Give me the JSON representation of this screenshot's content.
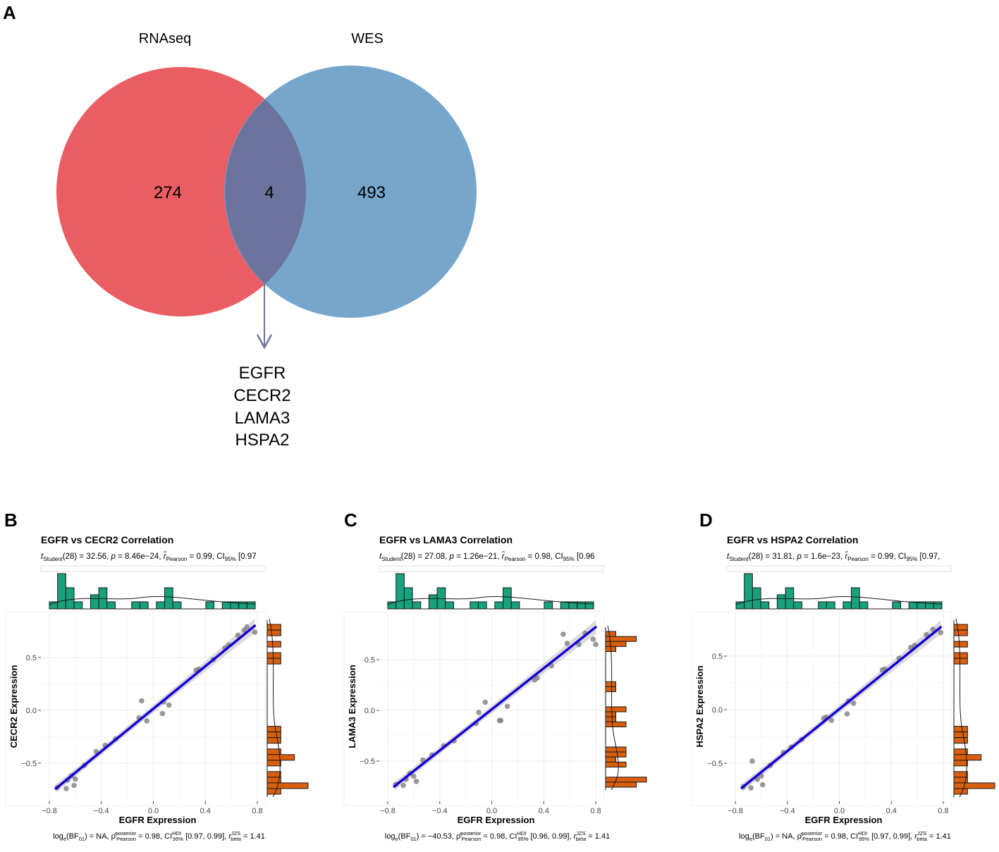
{
  "panels": {
    "A": {
      "label": "A",
      "set_labels": [
        "RNAseq",
        "WES"
      ],
      "counts": {
        "rnaseq_only": "274",
        "overlap": "4",
        "wes_only": "493"
      },
      "overlap_genes": [
        "EGFR",
        "CECR2",
        "LAMA3",
        "HSPA2"
      ],
      "colors": {
        "rnaseq": "#e95d63",
        "wes": "#76a6cc",
        "overlap": "#6c739c",
        "arrow": "#6e7398"
      }
    }
  },
  "chart_data": [
    {
      "panel": "B",
      "type": "scatter",
      "title": "EGFR vs CECR2 Correlation",
      "subtitle": {
        "t_label": "t",
        "t_sub": "Student",
        "t_value": "(28) = 32.56, ",
        "p_label": "p",
        "p_value": " = 8.46e−24, ",
        "r_label": "r̂",
        "r_sub": "Pearson",
        "r_value": " = 0.99, CI",
        "ci_sub": "95%",
        "ci_value": " [0.97"
      },
      "caption": {
        "log_part": "log",
        "log_sub": "e",
        "bf_part": "(BF",
        "bf_sub": "01",
        "bf_value": ") = NA, ",
        "rho": "ρ̂",
        "rho_sup": "posterior",
        "rho_sub": "Pearson",
        "rho_value": " = 0.98, CI",
        "ci_sup": "HDI",
        "ci_sub": "95%",
        "ci_value": " [0.97, 0.99], ",
        "r": "r",
        "r_sup": "JZS",
        "r_sub": "beta",
        "r_value": " = 1.41"
      },
      "xlabel": "EGFR Expression",
      "ylabel": "CECR2 Expression",
      "xlim": [
        -0.8,
        0.8
      ],
      "ylim": [
        -0.86,
        0.85
      ],
      "xticks": [
        -0.8,
        -0.4,
        0.0,
        0.4,
        0.8
      ],
      "xtick_labels": [
        "−0.8",
        "−0.4",
        "0.0",
        "0.4",
        "0.8"
      ],
      "yticks": [
        0.5,
        0.0,
        -0.5
      ],
      "ytick_labels": [
        "0.5",
        "0.0",
        "−0.5"
      ],
      "x": [
        -0.74,
        -0.67,
        -0.66,
        -0.63,
        -0.6,
        -0.61,
        -0.53,
        -0.44,
        -0.37,
        -0.29,
        -0.11,
        -0.09,
        -0.05,
        0.07,
        0.08,
        0.12,
        0.33,
        0.35,
        0.46,
        0.55,
        0.58,
        0.65,
        0.7,
        0.72,
        0.78
      ],
      "y": [
        -0.73,
        -0.74,
        -0.66,
        -0.62,
        -0.65,
        -0.71,
        -0.52,
        -0.39,
        -0.33,
        -0.27,
        -0.07,
        0.09,
        -0.1,
        -0.03,
        0.08,
        0.05,
        0.38,
        0.39,
        0.48,
        0.59,
        0.62,
        0.71,
        0.76,
        0.79,
        0.74
      ],
      "fit": {
        "x": [
          -0.75,
          0.78
        ],
        "y": [
          -0.74,
          0.8
        ]
      },
      "top_hist": [
        1,
        5,
        3,
        1,
        0,
        2,
        3,
        1,
        0,
        0,
        1,
        1,
        0,
        1,
        3,
        1,
        0,
        0,
        0,
        1,
        0,
        1,
        1,
        1,
        1
      ],
      "right_hist": [
        1,
        1,
        0,
        1,
        0,
        1,
        1,
        0,
        0,
        0,
        0,
        0,
        0,
        0,
        0,
        0,
        0,
        0,
        1,
        1,
        1,
        0,
        1,
        2,
        1,
        0,
        1,
        1,
        3,
        1
      ],
      "colors": {
        "top_hist": "#17a17c",
        "right_hist": "#d95f0e",
        "points": "#7f7f7f",
        "fit": "#1400d8",
        "band": "#bdbdbd"
      }
    },
    {
      "panel": "C",
      "type": "scatter",
      "title": "EGFR vs LAMA3 Correlation",
      "subtitle": {
        "t_label": "t",
        "t_sub": "Student",
        "t_value": "(28) = 27.08, ",
        "p_label": "p",
        "p_value": " = 1.26e−21, ",
        "r_label": "r̂",
        "r_sub": "Pearson",
        "r_value": " = 0.98, CI",
        "ci_sub": "95%",
        "ci_value": " [0.96"
      },
      "caption": {
        "log_part": "log",
        "log_sub": "e",
        "bf_part": "(BF",
        "bf_sub": "01",
        "bf_value": ") = −40.53, ",
        "rho": "ρ̂",
        "rho_sup": "posterior",
        "rho_sub": "Pearson",
        "rho_value": " = 0.98, CI",
        "ci_sup": "HDI",
        "ci_sub": "95%",
        "ci_value": " [0.96, 0.99], ",
        "r": "r",
        "r_sup": "JZS",
        "r_sub": "beta",
        "r_value": " = 1.41"
      },
      "xlabel": "EGFR Expression",
      "ylabel": "LAMA3 Expression",
      "xlim": [
        -0.8,
        0.8
      ],
      "ylim": [
        -0.86,
        0.86
      ],
      "xticks": [
        -0.8,
        -0.4,
        0.0,
        0.4,
        0.8
      ],
      "xtick_labels": [
        "−0.8",
        "−0.4",
        "0.0",
        "0.4",
        "0.8"
      ],
      "yticks": [
        0.5,
        0.0,
        -0.5
      ],
      "ytick_labels": [
        "0.5",
        "0.0",
        "−0.5"
      ],
      "x": [
        -0.74,
        -0.68,
        -0.66,
        -0.63,
        -0.6,
        -0.58,
        -0.53,
        -0.46,
        -0.37,
        -0.29,
        -0.12,
        -0.1,
        -0.05,
        0.06,
        0.07,
        0.12,
        0.33,
        0.35,
        0.46,
        0.55,
        0.58,
        0.67,
        0.72,
        0.78,
        0.8
      ],
      "y": [
        -0.73,
        -0.74,
        -0.68,
        -0.62,
        -0.65,
        -0.7,
        -0.49,
        -0.44,
        -0.35,
        -0.3,
        -0.13,
        -0.02,
        0.08,
        -0.1,
        -0.1,
        0.04,
        0.3,
        0.32,
        0.44,
        0.75,
        0.66,
        0.65,
        0.76,
        0.7,
        0.65
      ],
      "fit": {
        "x": [
          -0.75,
          0.8
        ],
        "y": [
          -0.75,
          0.82
        ]
      },
      "top_hist": [
        1,
        5,
        3,
        1,
        0,
        2,
        3,
        1,
        0,
        0,
        1,
        1,
        0,
        1,
        3,
        1,
        0,
        0,
        0,
        1,
        0,
        1,
        1,
        1,
        1
      ],
      "right_hist": [
        1,
        3,
        2,
        1,
        0,
        0,
        0,
        0,
        0,
        0,
        1,
        1,
        0,
        0,
        0,
        2,
        1,
        1,
        2,
        0,
        0,
        0,
        0,
        2,
        2,
        1,
        2,
        0,
        0,
        4,
        3
      ],
      "colors": {
        "top_hist": "#17a17c",
        "right_hist": "#d95f0e",
        "points": "#7f7f7f",
        "fit": "#1400d8",
        "band": "#bdbdbd"
      }
    },
    {
      "panel": "D",
      "type": "scatter",
      "title": "EGFR vs HSPA2 Correlation",
      "subtitle": {
        "t_label": "t",
        "t_sub": "Student",
        "t_value": "(28) = 31.81, ",
        "p_label": "p",
        "p_value": " = 1.6e−23, ",
        "r_label": "r̂",
        "r_sub": "Pearson",
        "r_value": " = 0.99, CI",
        "ci_sub": "95%",
        "ci_value": " [0.97,"
      },
      "caption": {
        "log_part": "log",
        "log_sub": "e",
        "bf_part": "(BF",
        "bf_sub": "01",
        "bf_value": ") = NA, ",
        "rho": "ρ̂",
        "rho_sup": "posterior",
        "rho_sub": "Pearson",
        "rho_value": " = 0.98, CI",
        "ci_sup": "HDI",
        "ci_sub": "95%",
        "ci_value": " [0.97, 0.99], ",
        "r": "r",
        "r_sup": "JZS",
        "r_sub": "beta",
        "r_value": " = 1.41"
      },
      "xlabel": "EGFR Expression",
      "ylabel": "HSPA2 Expression",
      "xlim": [
        -0.8,
        0.8
      ],
      "ylim": [
        -0.86,
        0.86
      ],
      "xticks": [
        -0.8,
        -0.4,
        0.0,
        0.4,
        0.8
      ],
      "xtick_labels": [
        "−0.8",
        "−0.4",
        "0.0",
        "0.4",
        "0.8"
      ],
      "yticks": [
        0.5,
        0.0,
        -0.5
      ],
      "ytick_labels": [
        "0.5",
        "0.0",
        "−0.5"
      ],
      "x": [
        -0.74,
        -0.68,
        -0.67,
        -0.63,
        -0.6,
        -0.59,
        -0.53,
        -0.43,
        -0.37,
        -0.29,
        -0.12,
        -0.1,
        -0.06,
        0.06,
        0.07,
        0.11,
        0.33,
        0.35,
        0.46,
        0.55,
        0.58,
        0.67,
        0.72,
        0.78
      ],
      "y": [
        -0.72,
        -0.73,
        -0.48,
        -0.65,
        -0.62,
        -0.7,
        -0.52,
        -0.4,
        -0.35,
        -0.28,
        -0.08,
        -0.07,
        -0.1,
        -0.04,
        0.08,
        0.06,
        0.37,
        0.38,
        0.48,
        0.58,
        0.6,
        0.7,
        0.75,
        0.72
      ],
      "fit": {
        "x": [
          -0.75,
          0.78
        ],
        "y": [
          -0.73,
          0.77
        ]
      },
      "top_hist": [
        1,
        5,
        3,
        1,
        0,
        2,
        3,
        1,
        0,
        0,
        1,
        1,
        0,
        1,
        3,
        1,
        0,
        0,
        0,
        1,
        0,
        1,
        1,
        1,
        1
      ],
      "right_hist": [
        1,
        1,
        0,
        1,
        0,
        1,
        1,
        0,
        0,
        0,
        0,
        0,
        0,
        0,
        0,
        0,
        0,
        0,
        1,
        1,
        1,
        0,
        1,
        2,
        1,
        0,
        1,
        1,
        3,
        1
      ],
      "colors": {
        "top_hist": "#17a17c",
        "right_hist": "#d95f0e",
        "points": "#7f7f7f",
        "fit": "#1400d8",
        "band": "#bdbdbd"
      }
    }
  ]
}
